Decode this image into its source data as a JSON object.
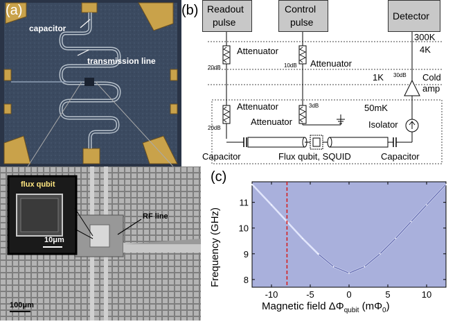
{
  "panel_a": {
    "label": "(a)",
    "capacitor_label": "capacitor",
    "transmission_line_label": "transmission line",
    "inset_label": "flux qubit",
    "inset_scale": "10μm",
    "rf_line_label": "RF line",
    "scale_bar": "100μm"
  },
  "panel_b": {
    "label": "(b)",
    "boxes": {
      "readout": [
        "Readout",
        "pulse"
      ],
      "control": [
        "Control",
        "pulse"
      ],
      "detector": "Detector"
    },
    "stages": [
      "300K",
      "4K",
      "1K",
      "50mK"
    ],
    "attenuators": {
      "label": "Attenuator",
      "vals": [
        "20dB",
        "10dB",
        "20dB",
        "3dB",
        "30dB"
      ]
    },
    "cold_amp": [
      "Cold",
      "amp"
    ],
    "isolator": "Isolator",
    "capacitor": "Capacitor",
    "qubit_label": "Flux qubit, SQUID"
  },
  "panel_c": {
    "label": "(c)",
    "ylabel": "Frequency (GHz)",
    "xlabel_main": "Magnetic field ΔΦ",
    "xlabel_sub": "qubit",
    "xlabel_unit": " (mΦ",
    "xlabel_unit_sub": "0",
    "xlabel_close": ")",
    "xticks": [
      "-10",
      "-5",
      "0",
      "5",
      "10"
    ],
    "yticks": [
      "8",
      "9",
      "10",
      "11"
    ],
    "dashed_x": -8
  },
  "chart_data": {
    "type": "line",
    "xlabel": "Magnetic field ΔΦqubit (mΦ0)",
    "ylabel": "Frequency (GHz)",
    "xlim": [
      -12.5,
      12.5
    ],
    "ylim": [
      7.7,
      11.8
    ],
    "series": [
      {
        "x": [
          -12.5,
          -10,
          -8,
          -6,
          -4,
          -2,
          0,
          2,
          4,
          6,
          8,
          10,
          12.5
        ],
        "values": [
          11.7,
          10.9,
          10.25,
          9.6,
          9.0,
          8.5,
          8.25,
          8.5,
          9.0,
          9.6,
          10.25,
          10.9,
          11.7
        ]
      }
    ],
    "grid": false
  }
}
